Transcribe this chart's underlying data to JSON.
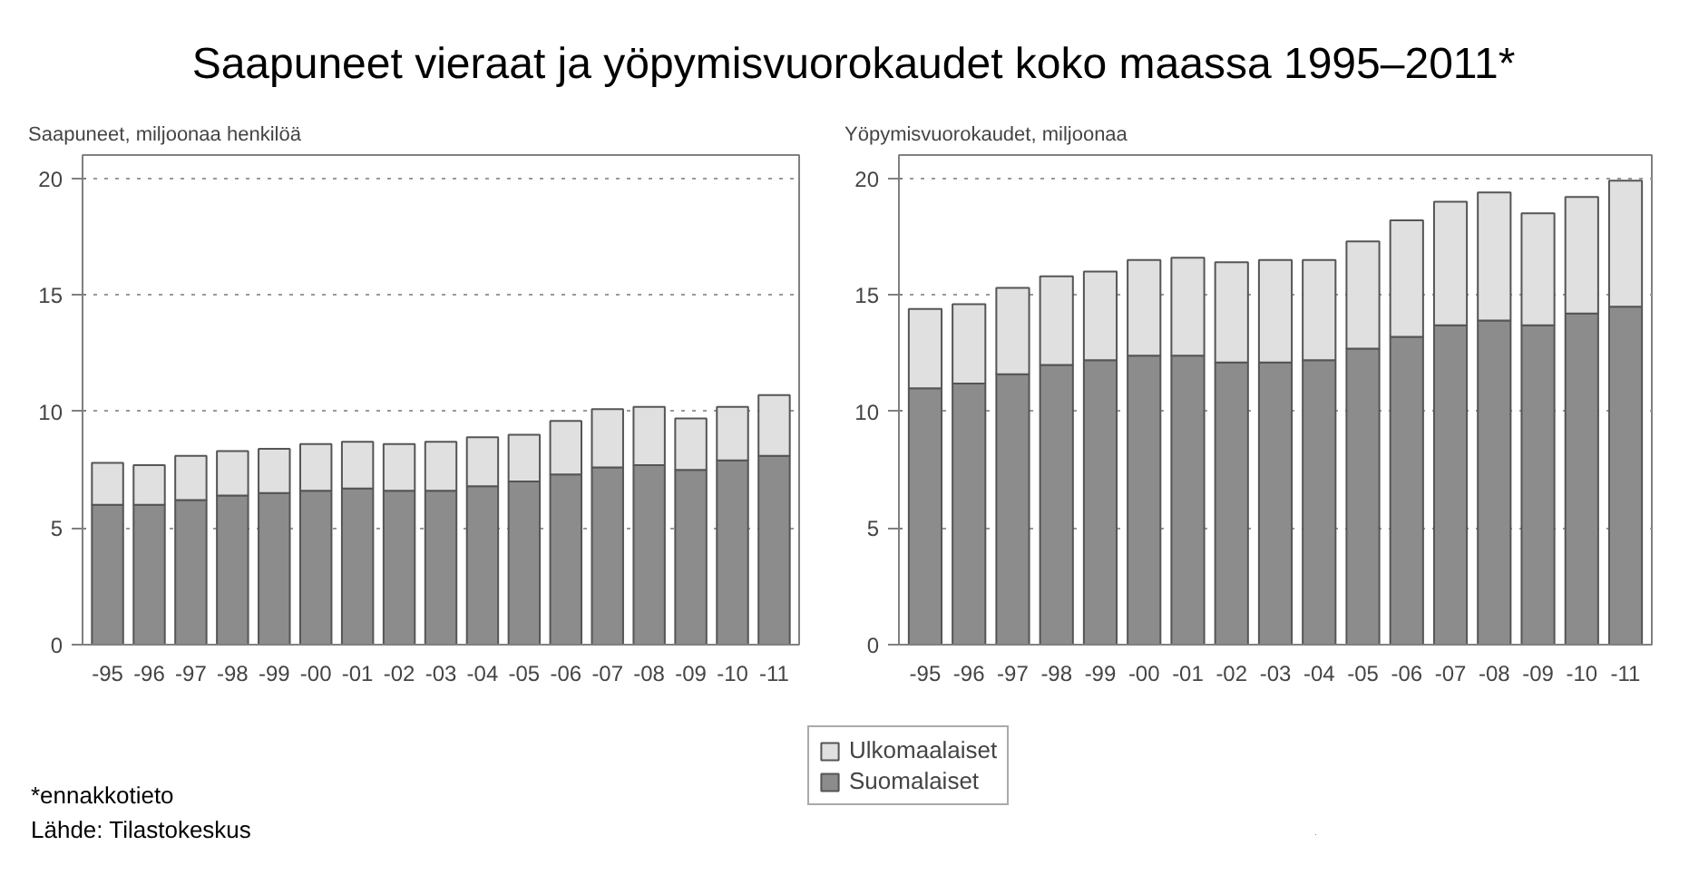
{
  "chart_data": [
    {
      "type": "bar",
      "stacked": true,
      "title": "Saapuneet vieraat ja yöpymisvuorokaudet koko maassa 1995–2011*",
      "ylabel": "Saapuneet, miljoonaa henkilöä",
      "categories": [
        "-95",
        "-96",
        "-97",
        "-98",
        "-99",
        "-00",
        "-01",
        "-02",
        "-03",
        "-04",
        "-05",
        "-06",
        "-07",
        "-08",
        "-09",
        "-10",
        "-11"
      ],
      "series": [
        {
          "name": "Suomalaiset",
          "color": "#8c8c8c",
          "values": [
            6.0,
            6.0,
            6.2,
            6.4,
            6.5,
            6.6,
            6.7,
            6.6,
            6.6,
            6.8,
            7.0,
            7.3,
            7.6,
            7.7,
            7.5,
            7.9,
            8.1
          ]
        },
        {
          "name": "Ulkomaalaiset",
          "color": "#e0e0e0",
          "values": [
            1.8,
            1.7,
            1.9,
            1.9,
            1.9,
            2.0,
            2.0,
            2.0,
            2.1,
            2.1,
            2.0,
            2.3,
            2.5,
            2.5,
            2.2,
            2.3,
            2.6
          ]
        }
      ],
      "ylim": [
        0,
        21
      ],
      "yticks": [
        0,
        5,
        10,
        15,
        20
      ],
      "grid": "y",
      "legend": "bottom",
      "annotations": [
        "*ennakkotieto",
        "Lähde: Tilastokeskus"
      ]
    },
    {
      "type": "bar",
      "stacked": true,
      "ylabel": "Yöpymisvuorokaudet, miljoonaa",
      "categories": [
        "-95",
        "-96",
        "-97",
        "-98",
        "-99",
        "-00",
        "-01",
        "-02",
        "-03",
        "-04",
        "-05",
        "-06",
        "-07",
        "-08",
        "-09",
        "-10",
        "-11"
      ],
      "series": [
        {
          "color": "#8c8c8c",
          "values": [
            11.0,
            11.2,
            11.6,
            12.0,
            12.2,
            12.4,
            12.4,
            12.1,
            12.1,
            12.2,
            12.7,
            13.2,
            13.7,
            13.9,
            13.7,
            14.2,
            14.5
          ]
        },
        {
          "color": "#e0e0e0",
          "values": [
            3.4,
            3.4,
            3.7,
            3.8,
            3.8,
            4.1,
            4.2,
            4.3,
            4.4,
            4.3,
            4.6,
            5.0,
            5.3,
            5.5,
            4.8,
            5.0,
            5.4
          ]
        }
      ],
      "ylim": [
        0,
        21
      ],
      "yticks": [
        0,
        5,
        10,
        15,
        20
      ],
      "grid": "y"
    }
  ]
}
